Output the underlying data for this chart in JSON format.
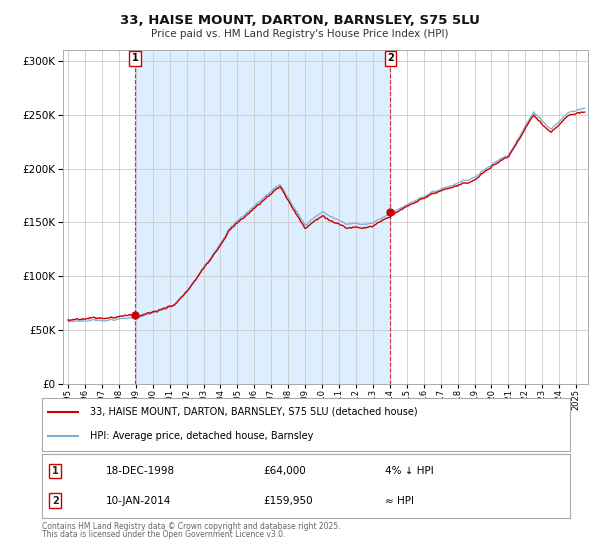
{
  "title": "33, HAISE MOUNT, DARTON, BARNSLEY, S75 5LU",
  "subtitle": "Price paid vs. HM Land Registry's House Price Index (HPI)",
  "sale1_date": "18-DEC-1998",
  "sale1_price": 64000,
  "sale1_label": "4% ↓ HPI",
  "sale2_date": "10-JAN-2014",
  "sale2_price": 159950,
  "sale2_label": "≈ HPI",
  "legend_line1": "33, HAISE MOUNT, DARTON, BARNSLEY, S75 5LU (detached house)",
  "legend_line2": "HPI: Average price, detached house, Barnsley",
  "footnote1": "Contains HM Land Registry data © Crown copyright and database right 2025.",
  "footnote2": "This data is licensed under the Open Government Licence v3.0.",
  "hpi_color": "#7ab0d8",
  "price_color": "#cc0000",
  "background_color": "#ffffff",
  "shaded_region_color": "#ddeeff",
  "grid_color": "#cccccc",
  "sale1_year": 1998.96,
  "sale2_year": 2014.03,
  "ylim": [
    0,
    310000
  ],
  "xlim_start": 1994.7,
  "xlim_end": 2025.7
}
